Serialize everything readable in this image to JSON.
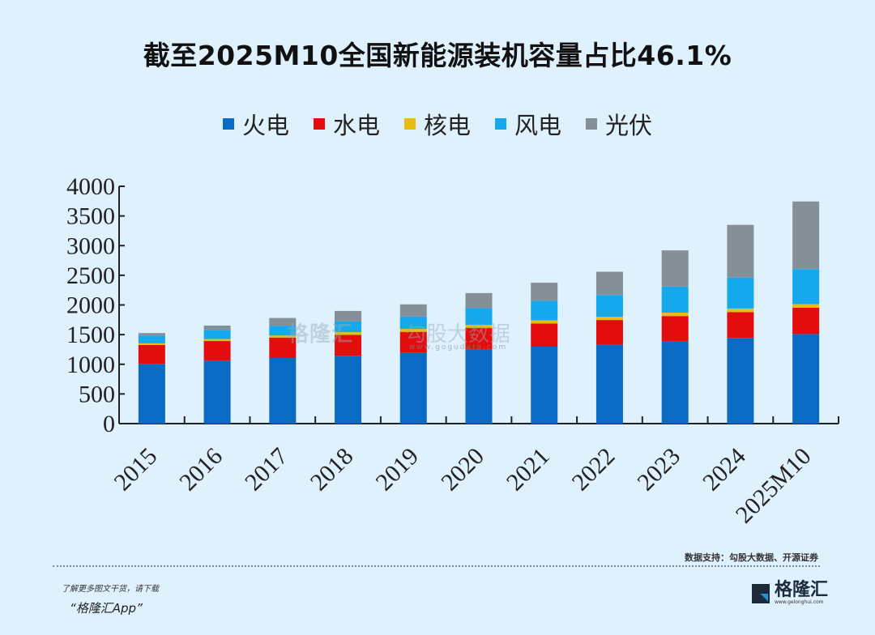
{
  "header": {
    "title": "截至2025M10全国新能源装机容量占比46.1%"
  },
  "watermark": {
    "brand": "格隆汇",
    "partner": "勾股大数据",
    "url": "www.gogudata.com"
  },
  "chart_data": {
    "type": "bar",
    "stacked": true,
    "title": "截至2025M10全国新能源装机容量占比46.1%",
    "xlabel": "",
    "ylabel": "",
    "ylim": [
      0,
      4000
    ],
    "yticks": [
      0,
      500,
      1000,
      1500,
      2000,
      2500,
      3000,
      3500,
      4000
    ],
    "legend_position": "top-center",
    "grid": false,
    "categories": [
      "2015",
      "2016",
      "2017",
      "2018",
      "2019",
      "2020",
      "2021",
      "2022",
      "2023",
      "2024",
      "2025M10"
    ],
    "series": [
      {
        "name": "火电",
        "color": "#0a6bc4",
        "values": [
          1006,
          1060,
          1106,
          1144,
          1191,
          1245,
          1297,
          1332,
          1391,
          1444,
          1510
        ]
      },
      {
        "name": "水电",
        "color": "#e30d0d",
        "values": [
          320,
          332,
          344,
          352,
          356,
          370,
          391,
          414,
          422,
          436,
          443
        ]
      },
      {
        "name": "核电",
        "color": "#e8bd11",
        "values": [
          27,
          34,
          36,
          45,
          49,
          50,
          53,
          56,
          57,
          61,
          61
        ]
      },
      {
        "name": "风电",
        "color": "#15a8ec",
        "values": [
          131,
          149,
          164,
          184,
          210,
          282,
          328,
          365,
          441,
          521,
          590
        ]
      },
      {
        "name": "光伏",
        "color": "#858f97",
        "values": [
          42,
          77,
          130,
          174,
          204,
          253,
          306,
          393,
          609,
          887,
          1140
        ]
      }
    ]
  },
  "footer": {
    "source": "数据支持：勾股大数据、开源证券",
    "promo_line1": "了解更多图文干货，请下载",
    "promo_line2": "“格隆汇App”",
    "logo_text": "格隆汇",
    "logo_url": "www.gelonghui.com"
  }
}
